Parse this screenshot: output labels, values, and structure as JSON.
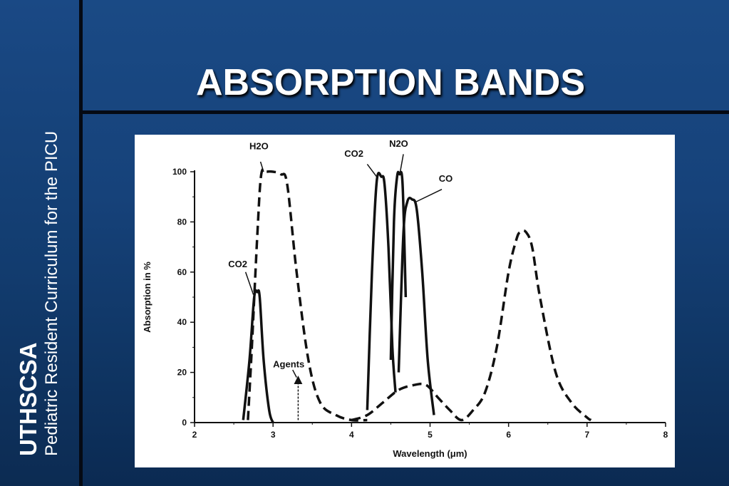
{
  "slide": {
    "title": "ABSORPTION BANDS",
    "sidebar_org": "UTHSCSA",
    "sidebar_subtitle": "Pediatric Resident Curriculum for the PICU"
  },
  "colors": {
    "background": "#16427a",
    "divider": "#050a14",
    "text": "#ffffff",
    "plot_bg": "#ffffff",
    "ink": "#111111"
  },
  "chart_data": {
    "type": "line",
    "title": "",
    "xlabel": "Wavelength (μm)",
    "ylabel": "Absorption in %",
    "xlim": [
      2,
      8
    ],
    "ylim": [
      0,
      100
    ],
    "xticks": [
      2,
      3,
      4,
      5,
      6,
      7,
      8
    ],
    "yticks": [
      0,
      20,
      40,
      60,
      80,
      100
    ],
    "grid": false,
    "series": [
      {
        "name": "CO2",
        "style": "solid",
        "x": [
          2.62,
          2.7,
          2.76,
          2.8,
          2.83,
          2.88,
          2.95,
          3.0
        ],
        "y": [
          1,
          25,
          50,
          52,
          50,
          25,
          5,
          0
        ]
      },
      {
        "name": "H2O",
        "style": "dashed",
        "x": [
          2.68,
          2.73,
          2.8,
          2.85,
          2.92,
          3.0,
          3.1,
          3.18,
          3.3,
          3.45,
          3.6,
          3.8,
          4.0,
          4.2
        ],
        "y": [
          1,
          30,
          75,
          99,
          100,
          100,
          99,
          95,
          60,
          25,
          8,
          3,
          1,
          1
        ]
      },
      {
        "name": "CO2",
        "style": "solid",
        "x": [
          4.2,
          4.26,
          4.32,
          4.38,
          4.42,
          4.47,
          4.52,
          4.56
        ],
        "y": [
          5,
          60,
          96,
          98,
          95,
          70,
          30,
          12
        ]
      },
      {
        "name": "N2O",
        "style": "solid",
        "x": [
          4.5,
          4.54,
          4.58,
          4.61,
          4.65,
          4.69
        ],
        "y": [
          25,
          80,
          98,
          99,
          95,
          50
        ]
      },
      {
        "name": "CO",
        "style": "solid",
        "x": [
          4.6,
          4.66,
          4.71,
          4.77,
          4.83,
          4.9,
          4.97,
          5.05
        ],
        "y": [
          20,
          75,
          88,
          89,
          85,
          60,
          25,
          3
        ]
      },
      {
        "name": "Agents",
        "style": "dashed",
        "x": [
          4.0,
          4.2,
          4.4,
          4.6,
          4.8,
          4.95,
          5.1,
          5.25,
          5.4,
          5.55,
          5.7,
          5.85,
          6.0,
          6.1,
          6.15,
          6.22,
          6.3,
          6.4,
          6.6,
          6.8,
          7.0,
          7.05
        ],
        "y": [
          1,
          3,
          8,
          13,
          15,
          15,
          10,
          5,
          1,
          5,
          12,
          30,
          60,
          73,
          76,
          76,
          70,
          50,
          20,
          8,
          2,
          1
        ]
      }
    ],
    "annotations": [
      {
        "text": "H2O",
        "x": 2.82,
        "y": 109
      },
      {
        "text": "CO2",
        "x": 2.55,
        "y": 62
      },
      {
        "text": "CO2",
        "x": 4.03,
        "y": 106
      },
      {
        "text": "N2O",
        "x": 4.6,
        "y": 110
      },
      {
        "text": "CO",
        "x": 5.2,
        "y": 96
      },
      {
        "text": "Agents",
        "x": 3.2,
        "y": 22
      }
    ]
  }
}
